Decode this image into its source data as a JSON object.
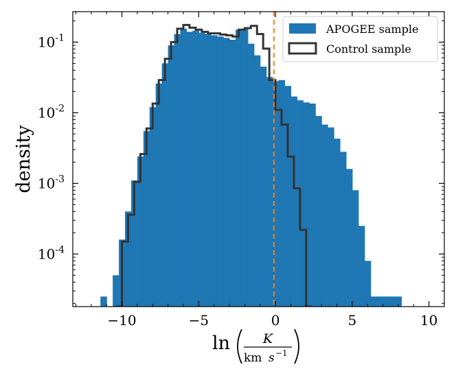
{
  "chart_data": {
    "type": "bar",
    "ylabel": "density",
    "xlabel": {
      "prefix": "ln",
      "numerator": "K",
      "denominator_unit": "km",
      "denominator_var": "s",
      "denominator_exp": "−1"
    },
    "xlim": [
      -13.2,
      11.0
    ],
    "ylim": [
      1.8e-05,
      0.27
    ],
    "yscale": "log",
    "grid": false,
    "legend_position": "top-right",
    "x_ticks": [
      {
        "value": -10,
        "label": "−10"
      },
      {
        "value": -5,
        "label": "−5"
      },
      {
        "value": 0,
        "label": "0"
      },
      {
        "value": 5,
        "label": "5"
      },
      {
        "value": 10,
        "label": "10"
      }
    ],
    "y_ticks": [
      {
        "value": 0.0001,
        "base": "10",
        "exp": "-4"
      },
      {
        "value": 0.001,
        "base": "10",
        "exp": "-3"
      },
      {
        "value": 0.01,
        "base": "10",
        "exp": "-2"
      },
      {
        "value": 0.1,
        "base": "10",
        "exp": "-1"
      }
    ],
    "reference_line": {
      "x": -0.1,
      "color": "#ff7f0e",
      "style": "dashed"
    },
    "series": [
      {
        "name": "APOGEE sample",
        "style": "filled",
        "color": "#1f77b4",
        "bin_width": 0.4,
        "bins": [
          [
            -11.4,
            2.5e-05
          ],
          [
            -10.6,
            5e-05
          ],
          [
            -10.2,
            0.00016
          ],
          [
            -9.8,
            0.0004
          ],
          [
            -9.4,
            0.0011
          ],
          [
            -9.0,
            0.0024
          ],
          [
            -8.6,
            0.0055
          ],
          [
            -8.2,
            0.012
          ],
          [
            -7.8,
            0.026
          ],
          [
            -7.4,
            0.05
          ],
          [
            -7.0,
            0.09
          ],
          [
            -6.6,
            0.13
          ],
          [
            -6.2,
            0.155
          ],
          [
            -5.8,
            0.14
          ],
          [
            -5.4,
            0.145
          ],
          [
            -5.0,
            0.135
          ],
          [
            -4.6,
            0.13
          ],
          [
            -4.2,
            0.125
          ],
          [
            -3.8,
            0.12
          ],
          [
            -3.4,
            0.115
          ],
          [
            -3.0,
            0.108
          ],
          [
            -2.6,
            0.15
          ],
          [
            -2.2,
            0.155
          ],
          [
            -1.8,
            0.095
          ],
          [
            -1.4,
            0.065
          ],
          [
            -1.0,
            0.045
          ],
          [
            -0.6,
            0.032
          ],
          [
            -0.2,
            0.028
          ],
          [
            0.2,
            0.029
          ],
          [
            0.6,
            0.024
          ],
          [
            1.0,
            0.017
          ],
          [
            1.4,
            0.015
          ],
          [
            1.8,
            0.014
          ],
          [
            2.2,
            0.0135
          ],
          [
            2.6,
            0.009
          ],
          [
            3.0,
            0.0068
          ],
          [
            3.4,
            0.0062
          ],
          [
            3.8,
            0.0043
          ],
          [
            4.2,
            0.0028
          ],
          [
            4.6,
            0.0016
          ],
          [
            5.0,
            0.0008
          ],
          [
            5.4,
            0.00025
          ],
          [
            5.8,
            8e-05
          ],
          [
            6.2,
            2.5e-05
          ],
          [
            6.6,
            2.5e-05
          ],
          [
            7.0,
            2.5e-05
          ],
          [
            7.4,
            2.5e-05
          ],
          [
            7.8,
            2.5e-05
          ]
        ]
      },
      {
        "name": "Control sample",
        "style": "step",
        "color": "#333333",
        "bin_width": 0.4,
        "bins": [
          [
            -10.4,
            1e-05
          ],
          [
            -10.0,
            0.00015
          ],
          [
            -9.6,
            0.00036
          ],
          [
            -9.2,
            0.00105
          ],
          [
            -8.8,
            0.0026
          ],
          [
            -8.4,
            0.006
          ],
          [
            -8.0,
            0.0135
          ],
          [
            -7.6,
            0.029
          ],
          [
            -7.2,
            0.058
          ],
          [
            -6.8,
            0.1
          ],
          [
            -6.4,
            0.155
          ],
          [
            -6.0,
            0.175
          ],
          [
            -5.6,
            0.16
          ],
          [
            -5.2,
            0.15
          ],
          [
            -4.8,
            0.14
          ],
          [
            -4.4,
            0.133
          ],
          [
            -4.0,
            0.133
          ],
          [
            -3.6,
            0.128
          ],
          [
            -3.2,
            0.125
          ],
          [
            -2.8,
            0.12
          ],
          [
            -2.4,
            0.15
          ],
          [
            -2.0,
            0.158
          ],
          [
            -1.6,
            0.17
          ],
          [
            -1.2,
            0.13
          ],
          [
            -0.8,
            0.081
          ],
          [
            -0.4,
            0.029
          ],
          [
            0.0,
            0.011
          ],
          [
            0.4,
            0.0068
          ],
          [
            0.8,
            0.0024
          ],
          [
            1.2,
            0.00085
          ],
          [
            1.6,
            0.00022
          ],
          [
            2.0,
            1e-05
          ]
        ]
      }
    ]
  }
}
